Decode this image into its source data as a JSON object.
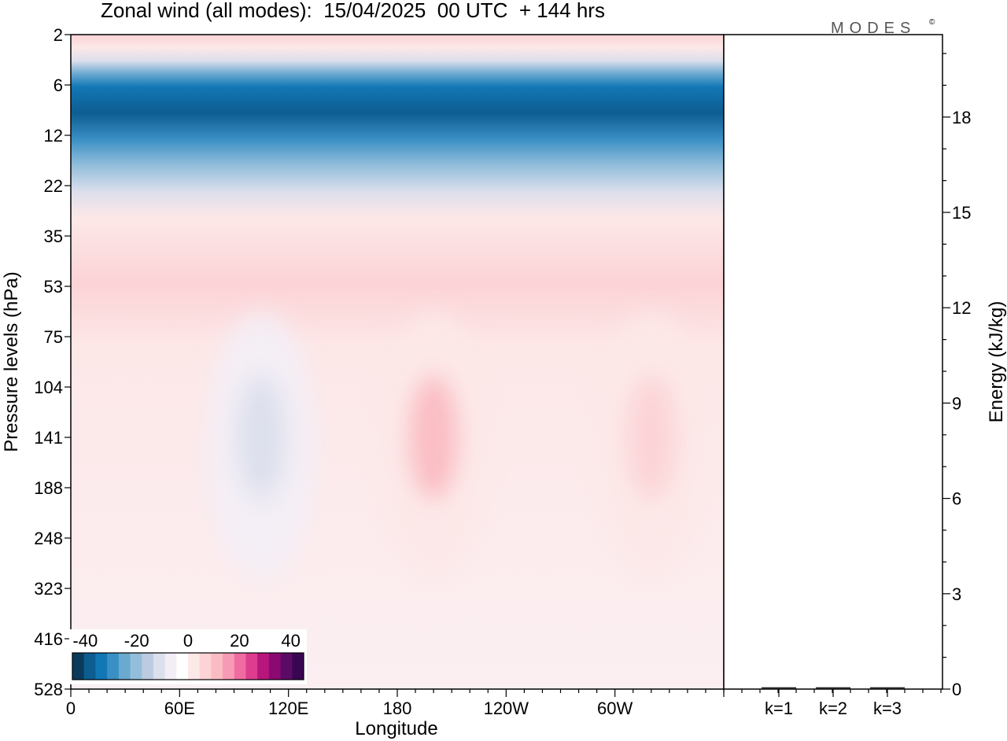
{
  "chart_data": {
    "type": "heatmap",
    "title": "Zonal wind (all modes):  15/04/2025  00 UTC  + 144 hrs",
    "watermark": "MODES",
    "xlabel": "Longitude",
    "ylabel": "Pressure levels (hPa)",
    "x_tick_labels": [
      "0",
      "60E",
      "120E",
      "180",
      "120W",
      "60W"
    ],
    "y_tick_labels": [
      "2",
      "6",
      "12",
      "22",
      "35",
      "53",
      "75",
      "104",
      "141",
      "188",
      "248",
      "323",
      "416",
      "528"
    ],
    "colorbar": {
      "tick_labels": [
        "-40",
        "-20",
        "0",
        "20",
        "40"
      ],
      "range": [
        -45,
        45
      ],
      "step": 5,
      "colors": [
        "#0b3b5c",
        "#0d5d91",
        "#1277b5",
        "#3a8fc4",
        "#6aa9d0",
        "#93bedb",
        "#bccbe0",
        "#dcdfec",
        "#f3eef6",
        "#ffffff",
        "#fde8e8",
        "#fcd3d6",
        "#fabcc2",
        "#f79ab5",
        "#f06ca0",
        "#dd3c8f",
        "#b7167c",
        "#8b0a72",
        "#5b0b66",
        "#3a0652"
      ]
    },
    "bands": [
      {
        "pressure": "2",
        "approx_wind": 8
      },
      {
        "pressure": "6",
        "approx_wind": -38
      },
      {
        "pressure": "12",
        "approx_wind": -26
      },
      {
        "pressure": "22",
        "approx_wind": -8
      },
      {
        "pressure": "35",
        "approx_wind": 2
      },
      {
        "pressure": "53",
        "approx_wind": 8
      },
      {
        "pressure": "75",
        "approx_wind": 4
      },
      {
        "pressure": "104",
        "approx_wind": 2
      },
      {
        "pressure": "141",
        "approx_wind": 0
      },
      {
        "pressure": "188",
        "approx_wind": 0
      },
      {
        "pressure": "248",
        "approx_wind": 0
      },
      {
        "pressure": "323",
        "approx_wind": 0
      },
      {
        "pressure": "416",
        "approx_wind": 0
      },
      {
        "pressure": "528",
        "approx_wind": 0
      }
    ],
    "features": [
      {
        "kind": "easterly_min",
        "longitude": 105,
        "pressure": "141",
        "approx_wind": -10
      },
      {
        "kind": "westerly_max",
        "longitude": 200,
        "pressure": "141",
        "approx_wind": 18
      },
      {
        "kind": "westerly_max",
        "longitude": 320,
        "pressure": "141",
        "approx_wind": 10
      }
    ],
    "energy_panel": {
      "ylabel": "Energy (kJ/kg)",
      "ylim": [
        0,
        20
      ],
      "y_tick_labels": [
        "0",
        "3",
        "6",
        "9",
        "12",
        "15",
        "18"
      ],
      "categories": [
        "k=1",
        "k=2",
        "k=3"
      ],
      "values": [
        0.02,
        0.02,
        0.02
      ]
    }
  }
}
